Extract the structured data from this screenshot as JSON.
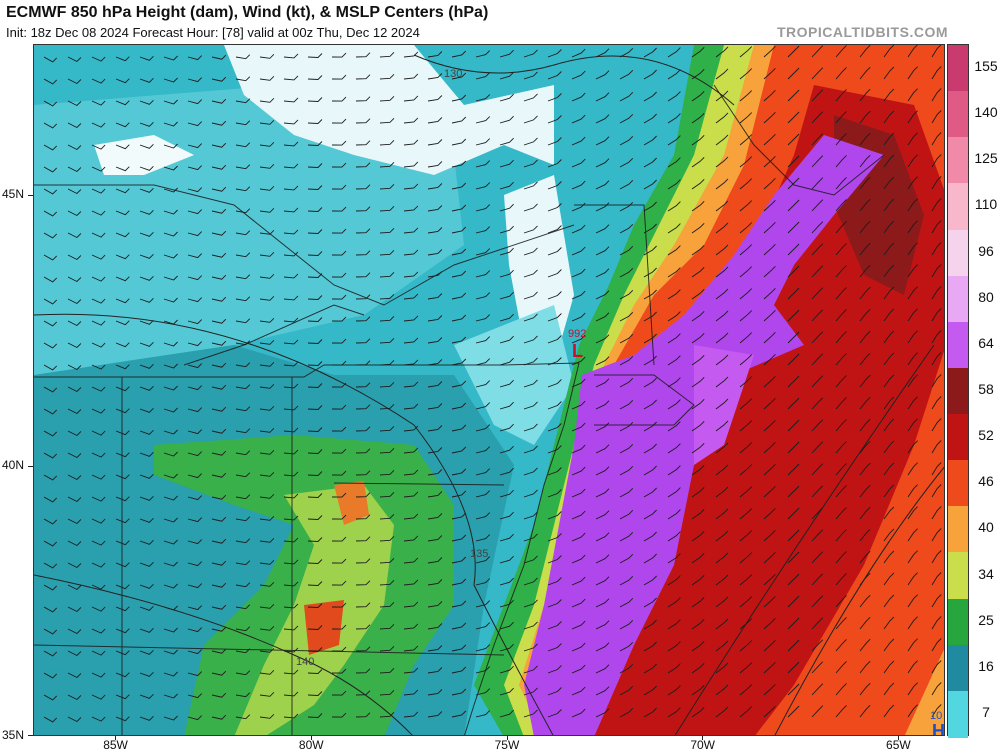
{
  "header": {
    "title": "ECMWF 850 hPa Height (dam), Wind (kt), & MSLP Centers (hPa)",
    "subtitle": "Init: 18z Dec 08 2024   Forecast Hour: [78]   valid at 00z Thu, Dec 12 2024",
    "brand": "TROPICALTIDBITS.COM"
  },
  "axes": {
    "latitudes": [
      {
        "label": "45N",
        "value": 45
      },
      {
        "label": "40N",
        "value": 40
      },
      {
        "label": "35N",
        "value": 35
      }
    ],
    "longitudes": [
      {
        "label": "85W",
        "value": -85
      },
      {
        "label": "80W",
        "value": -80
      },
      {
        "label": "75W",
        "value": -75
      },
      {
        "label": "70W",
        "value": -70
      },
      {
        "label": "65W",
        "value": -65
      }
    ]
  },
  "colorbar": {
    "unit": "kt",
    "labels": [
      "155",
      "140",
      "125",
      "110",
      "96",
      "80",
      "64",
      "58",
      "52",
      "46",
      "40",
      "34",
      "25",
      "16",
      "7"
    ],
    "colors": [
      "#c93a6e",
      "#e05a86",
      "#f08aa8",
      "#f8b7cb",
      "#f6d3ec",
      "#e9a8f4",
      "#c45af0",
      "#8c1a1a",
      "#c01414",
      "#ee4a1c",
      "#f7a23a",
      "#c9de4a",
      "#27a63e",
      "#1f8aa0",
      "#52d6e0"
    ]
  },
  "annotations": {
    "low_center": {
      "label": "L",
      "pressure": "992"
    },
    "high_center": {
      "label": "H",
      "pressure": "10"
    },
    "contours": [
      "130",
      "135",
      "140"
    ]
  }
}
